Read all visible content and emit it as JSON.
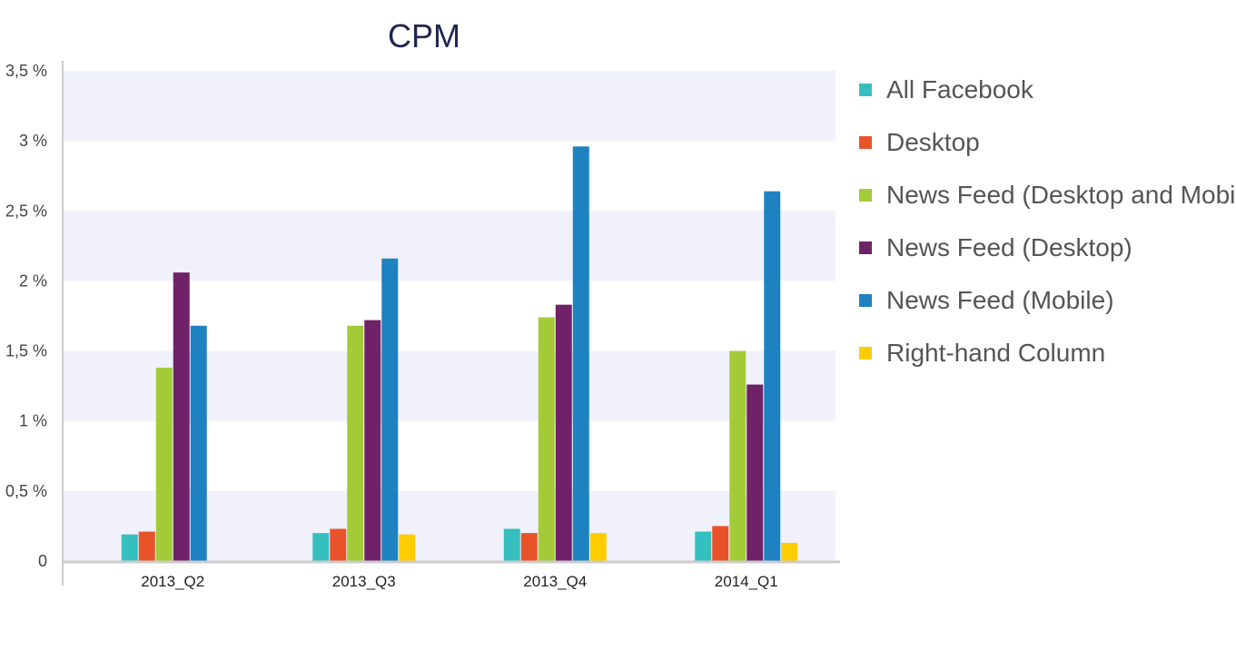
{
  "chart_data": {
    "type": "bar",
    "title": "CPM",
    "categories": [
      "2013_Q2",
      "2013_Q3",
      "2013_Q4",
      "2014_Q1"
    ],
    "ylim": [
      0,
      3.5
    ],
    "yticks": [
      0,
      0.5,
      1,
      1.5,
      2,
      2.5,
      3,
      3.5
    ],
    "ytick_labels": [
      "0",
      "0,5 %",
      "1 %",
      "1,5 %",
      "2 %",
      "2,5 %",
      "3 %",
      "3,5 %"
    ],
    "grid": "alternating horizontal bands",
    "legend_position": "right",
    "series": [
      {
        "name": "All Facebook",
        "color": "#36bfbf",
        "values": [
          0.19,
          0.2,
          0.23,
          0.21
        ]
      },
      {
        "name": "Desktop",
        "color": "#e8532a",
        "values": [
          0.21,
          0.23,
          0.2,
          0.25
        ]
      },
      {
        "name": "News Feed (Desktop and Mobile)",
        "color": "#a3cb38",
        "values": [
          1.38,
          1.68,
          1.74,
          1.5
        ]
      },
      {
        "name": "News Feed (Desktop)",
        "color": "#6f2268",
        "values": [
          2.06,
          1.72,
          1.83,
          1.26
        ]
      },
      {
        "name": "News Feed (Mobile)",
        "color": "#1f82c0",
        "values": [
          1.68,
          2.16,
          2.96,
          2.64
        ]
      },
      {
        "name": "Right-hand Column",
        "color": "#ffcc00",
        "values": [
          null,
          0.19,
          0.2,
          0.13
        ]
      }
    ]
  }
}
